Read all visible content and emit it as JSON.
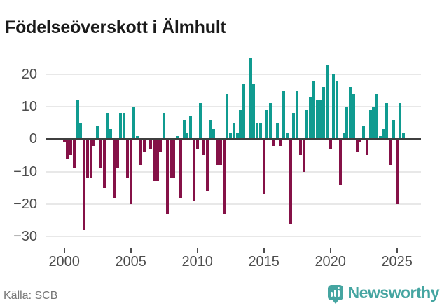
{
  "header": {
    "title": "Födelseöverskott i Älmhult"
  },
  "footer": {
    "source_label": "Källa: SCB",
    "brand_name": "Newsworthy"
  },
  "colors": {
    "positive_bar": "#109b90",
    "negative_bar": "#851147",
    "zero_line": "#3f3f3f",
    "gridline": "#e8e8e8",
    "axis_text": "#4d4d4d",
    "brand_teal": "#45a5a1"
  },
  "chart_data": {
    "type": "bar",
    "title": "Födelseöverskott i Älmhult",
    "frequency": "quarterly",
    "xlabel": "",
    "ylabel": "",
    "ylim": [
      -30,
      25
    ],
    "grid": "horizontal",
    "legend": "none",
    "y_tick_values": [
      20,
      10,
      0,
      -10,
      -20,
      -30
    ],
    "x_tick_labels": [
      "2000",
      "2005",
      "2010",
      "2015",
      "2020",
      "2025"
    ],
    "series_name": "Födelseöverskott",
    "years": [
      {
        "year": 2000,
        "q": [
          -1,
          -6,
          -5,
          -9
        ]
      },
      {
        "year": 2001,
        "q": [
          12,
          5,
          -28,
          -12
        ]
      },
      {
        "year": 2002,
        "q": [
          -12,
          -2,
          4,
          -9
        ]
      },
      {
        "year": 2003,
        "q": [
          -15,
          8,
          3,
          -18
        ]
      },
      {
        "year": 2004,
        "q": [
          -9,
          8,
          8,
          -12
        ]
      },
      {
        "year": 2005,
        "q": [
          -20,
          10,
          1,
          -8
        ]
      },
      {
        "year": 2006,
        "q": [
          -4,
          0,
          -3,
          -13
        ]
      },
      {
        "year": 2007,
        "q": [
          -13,
          -4,
          8,
          -23
        ]
      },
      {
        "year": 2008,
        "q": [
          -12,
          -12,
          1,
          -18
        ]
      },
      {
        "year": 2009,
        "q": [
          6,
          2,
          7,
          -19
        ]
      },
      {
        "year": 2010,
        "q": [
          -3,
          11,
          -5,
          -16
        ]
      },
      {
        "year": 2011,
        "q": [
          6,
          3,
          -8,
          -8
        ]
      },
      {
        "year": 2012,
        "q": [
          -23,
          14,
          2,
          5
        ]
      },
      {
        "year": 2013,
        "q": [
          2,
          9,
          17,
          0
        ]
      },
      {
        "year": 2014,
        "q": [
          25,
          17,
          5,
          5
        ]
      },
      {
        "year": 2015,
        "q": [
          -17,
          9,
          11,
          -2
        ]
      },
      {
        "year": 2016,
        "q": [
          5,
          -2,
          15,
          2
        ]
      },
      {
        "year": 2017,
        "q": [
          -26,
          8,
          15,
          -5
        ]
      },
      {
        "year": 2018,
        "q": [
          -10,
          9,
          13,
          18
        ]
      },
      {
        "year": 2019,
        "q": [
          12,
          12,
          16,
          23
        ]
      },
      {
        "year": 2020,
        "q": [
          -3,
          20,
          18,
          -14
        ]
      },
      {
        "year": 2021,
        "q": [
          2,
          10,
          16,
          14
        ]
      },
      {
        "year": 2022,
        "q": [
          -4,
          -1,
          4,
          -5
        ]
      },
      {
        "year": 2023,
        "q": [
          9,
          10,
          14,
          1
        ]
      },
      {
        "year": 2024,
        "q": [
          3,
          11,
          -8,
          6
        ]
      },
      {
        "year": 2025,
        "q": [
          -20,
          11,
          2
        ]
      }
    ]
  }
}
